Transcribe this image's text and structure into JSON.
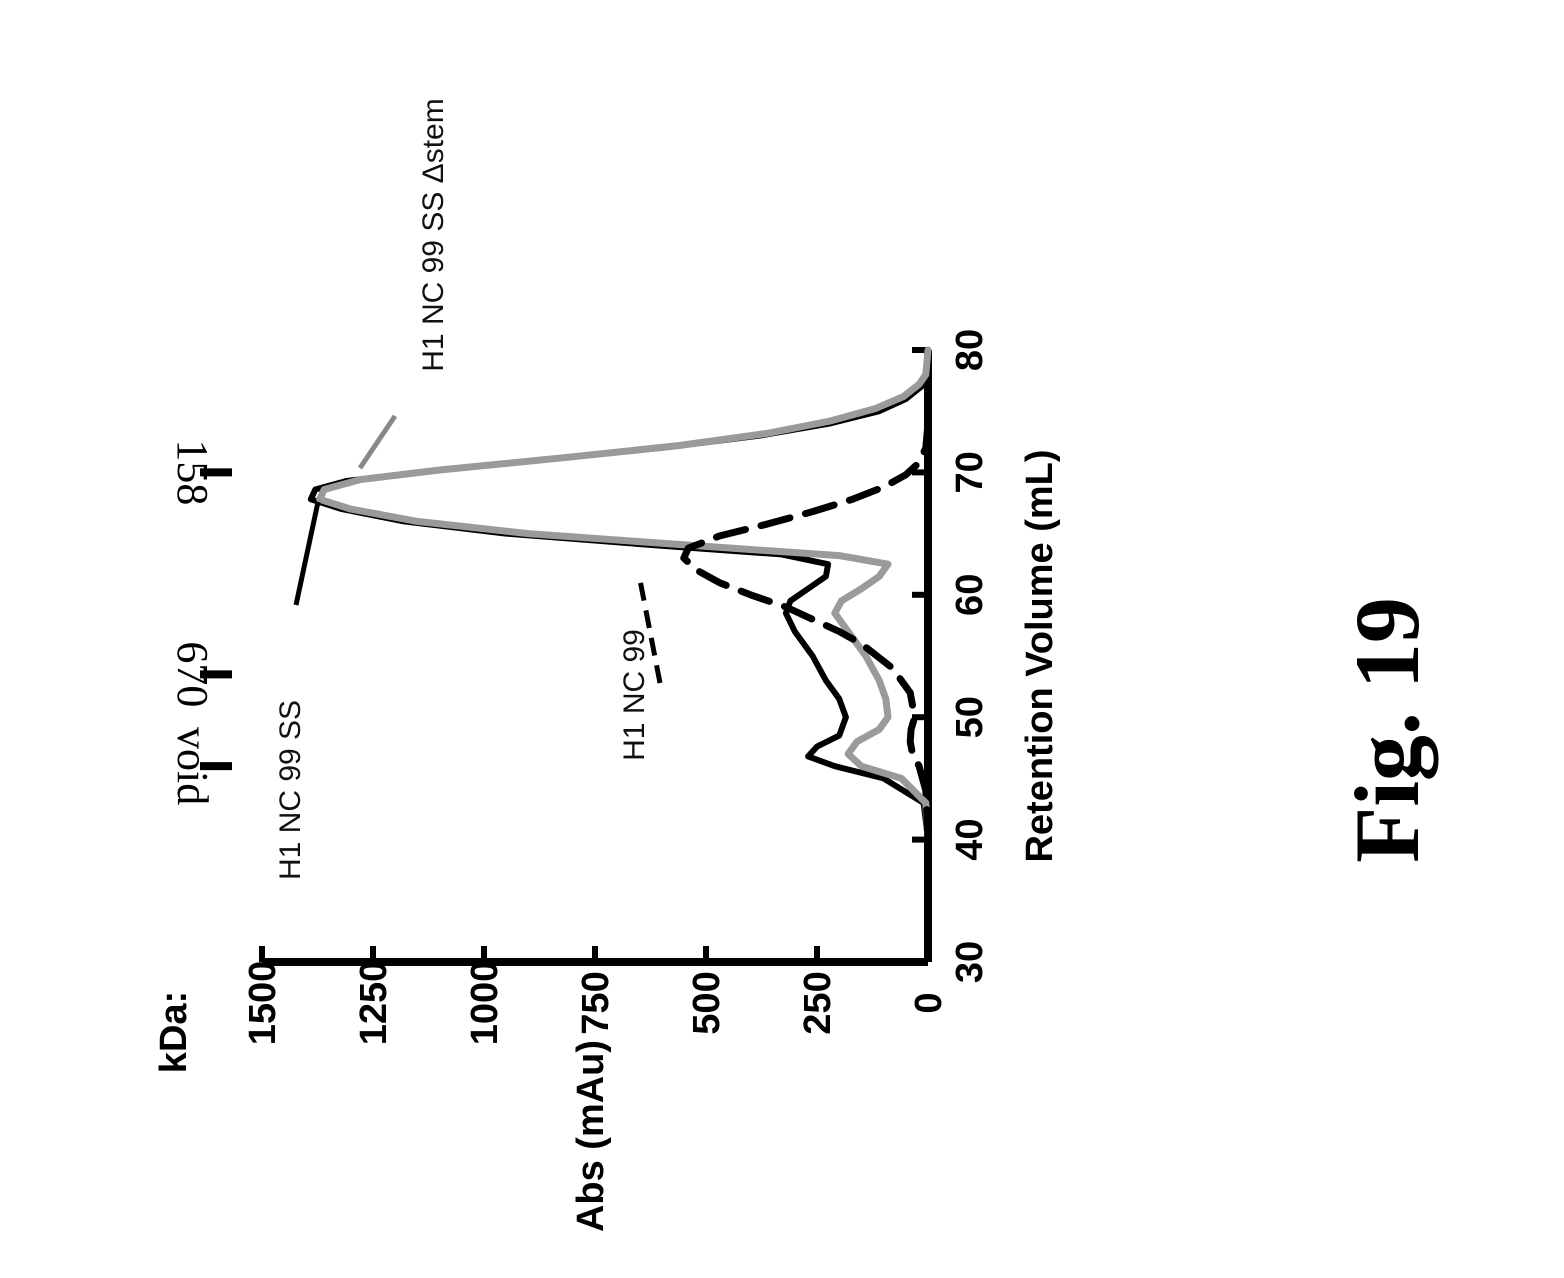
{
  "chart_data": {
    "type": "line",
    "title": "",
    "xlabel": "Retention Volume (mL)",
    "ylabel": "Abs (mAu)",
    "xlim": [
      30,
      80
    ],
    "ylim": [
      0,
      1500
    ],
    "x_ticks": [
      "30",
      "40",
      "50",
      "60",
      "70",
      "80"
    ],
    "y_ticks": [
      "0",
      "250",
      "500",
      "750",
      "1000",
      "1250",
      "1500"
    ],
    "grid": false,
    "legend": "none",
    "orientation": "rotated 90 degrees counter-clockwise on page",
    "kda_label": "kDa:",
    "markers": [
      {
        "label": "void",
        "x": 46
      },
      {
        "label": "670",
        "x": 53.5
      },
      {
        "label": "158",
        "x": 70
      }
    ],
    "series": [
      {
        "name": "H1 NC 99 SS",
        "style": "solid",
        "color": "#000000",
        "points": [
          [
            40,
            0
          ],
          [
            43,
            10
          ],
          [
            45,
            100
          ],
          [
            46,
            210
          ],
          [
            46.8,
            270
          ],
          [
            47.6,
            250
          ],
          [
            48.5,
            200
          ],
          [
            50,
            185
          ],
          [
            51.5,
            200
          ],
          [
            53,
            230
          ],
          [
            55,
            260
          ],
          [
            57,
            300
          ],
          [
            58.5,
            320
          ],
          [
            59.5,
            310
          ],
          [
            60.5,
            270
          ],
          [
            61.5,
            230
          ],
          [
            62.5,
            225
          ],
          [
            63.3,
            330
          ],
          [
            64,
            600
          ],
          [
            65,
            950
          ],
          [
            66,
            1180
          ],
          [
            67,
            1320
          ],
          [
            67.8,
            1390
          ],
          [
            68.6,
            1380
          ],
          [
            69.3,
            1310
          ],
          [
            70,
            1150
          ],
          [
            71,
            880
          ],
          [
            72,
            600
          ],
          [
            73,
            380
          ],
          [
            74,
            220
          ],
          [
            75,
            110
          ],
          [
            76,
            50
          ],
          [
            77,
            15
          ],
          [
            78,
            5
          ],
          [
            80,
            0
          ]
        ]
      },
      {
        "name": "H1 NC 99 SS Δstem",
        "style": "solid",
        "color": "#9a9a9a",
        "points": [
          [
            40,
            0
          ],
          [
            43,
            5
          ],
          [
            45,
            60
          ],
          [
            46,
            150
          ],
          [
            47,
            180
          ],
          [
            48,
            160
          ],
          [
            49,
            110
          ],
          [
            50,
            90
          ],
          [
            51.5,
            95
          ],
          [
            53,
            110
          ],
          [
            55,
            140
          ],
          [
            57,
            180
          ],
          [
            58.5,
            210
          ],
          [
            59.5,
            195
          ],
          [
            60.5,
            150
          ],
          [
            61.5,
            110
          ],
          [
            62.5,
            90
          ],
          [
            63.2,
            200
          ],
          [
            64,
            520
          ],
          [
            65,
            900
          ],
          [
            66,
            1150
          ],
          [
            67,
            1300
          ],
          [
            67.8,
            1370
          ],
          [
            68.6,
            1360
          ],
          [
            69.4,
            1280
          ],
          [
            70.2,
            1100
          ],
          [
            71.2,
            820
          ],
          [
            72.2,
            560
          ],
          [
            73.2,
            360
          ],
          [
            74.2,
            220
          ],
          [
            75.2,
            120
          ],
          [
            76.2,
            55
          ],
          [
            77.2,
            20
          ],
          [
            78,
            5
          ],
          [
            80,
            0
          ]
        ]
      },
      {
        "name": "H1 NC 99",
        "style": "dashed",
        "color": "#000000",
        "points": [
          [
            40,
            0
          ],
          [
            44,
            5
          ],
          [
            46,
            20
          ],
          [
            47,
            35
          ],
          [
            48,
            40
          ],
          [
            49,
            38
          ],
          [
            50,
            30
          ],
          [
            52,
            40
          ],
          [
            54,
            80
          ],
          [
            56,
            150
          ],
          [
            57,
            200
          ],
          [
            58,
            260
          ],
          [
            59,
            320
          ],
          [
            60,
            400
          ],
          [
            61,
            470
          ],
          [
            62,
            520
          ],
          [
            63,
            550
          ],
          [
            63.8,
            540
          ],
          [
            64.8,
            470
          ],
          [
            65.8,
            360
          ],
          [
            66.8,
            260
          ],
          [
            67.8,
            170
          ],
          [
            68.8,
            100
          ],
          [
            69.8,
            50
          ],
          [
            70.8,
            20
          ],
          [
            72,
            5
          ],
          [
            74,
            0
          ]
        ]
      }
    ],
    "annotations": [
      "H1 NC 99 SS",
      "H1 NC 99 SS Δstem",
      "H1 NC 99"
    ],
    "figure_label": "Fig. 19"
  }
}
